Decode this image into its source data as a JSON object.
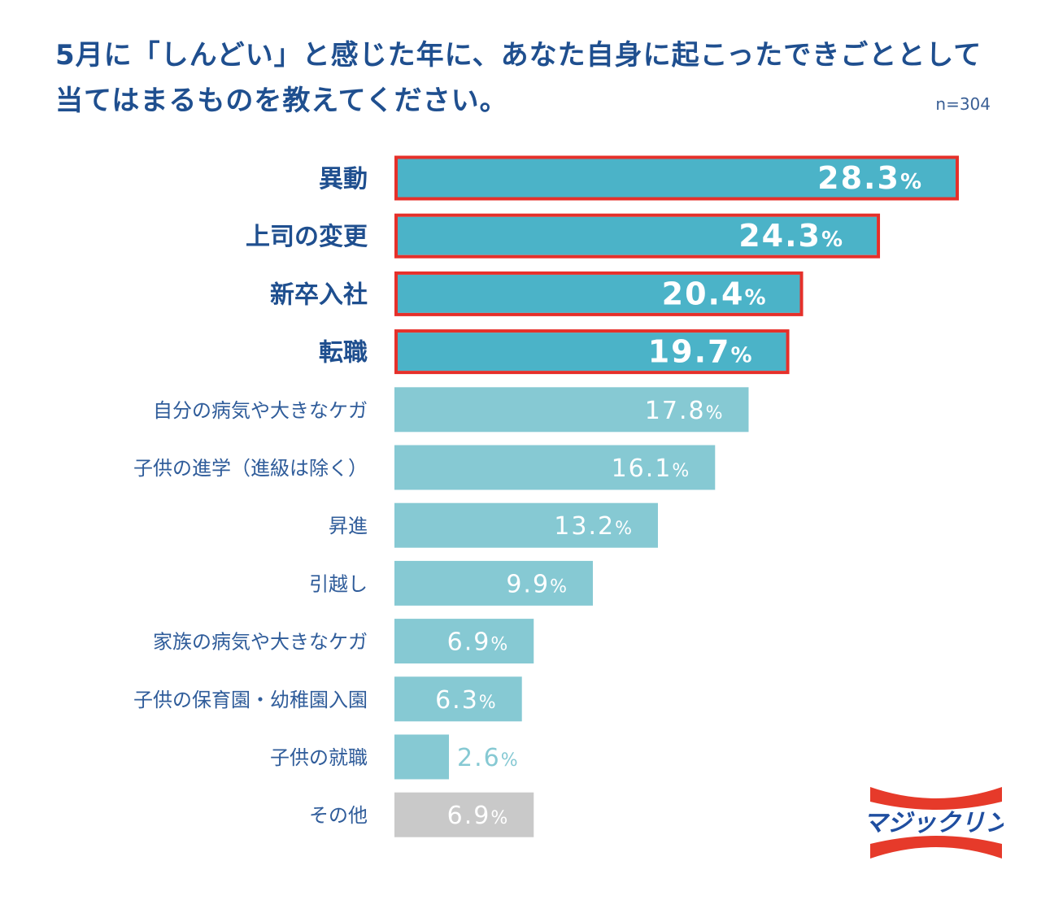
{
  "chart_data": {
    "type": "bar",
    "orientation": "horizontal",
    "title": "5月に「しんどい」と感じた年に、あなた自身に起こったできごととして当てはまるものを教えてください。",
    "title_lines": [
      "5月に「しんどい」と感じた年に、あなた自身に起こったできごととして",
      "当てはまるものを教えてください。"
    ],
    "sample_size": "n=304",
    "unit": "%",
    "categories": [
      "異動",
      "上司の変更",
      "新卒入社",
      "転職",
      "自分の病気や大きなケガ",
      "子供の進学（進級は除く）",
      "昇進",
      "引越し",
      "家族の病気や大きなケガ",
      "子供の保育園・幼稚園入園",
      "子供の就職",
      "その他"
    ],
    "values": [
      28.3,
      24.3,
      20.4,
      19.7,
      17.8,
      16.1,
      13.2,
      9.9,
      6.9,
      6.3,
      2.6,
      6.9
    ],
    "highlighted": [
      true,
      true,
      true,
      true,
      false,
      false,
      false,
      false,
      false,
      false,
      false,
      false
    ],
    "xlim": [
      0,
      28.3
    ],
    "grid": false,
    "colors": {
      "highlight": "#4bb3c8",
      "normal": "#86c9d3",
      "other": "#c9c9c9",
      "outline": "#e5302a",
      "title": "#1f4f8f",
      "label": "#2f5c9a"
    }
  },
  "logo": {
    "text": "マジックリン"
  }
}
